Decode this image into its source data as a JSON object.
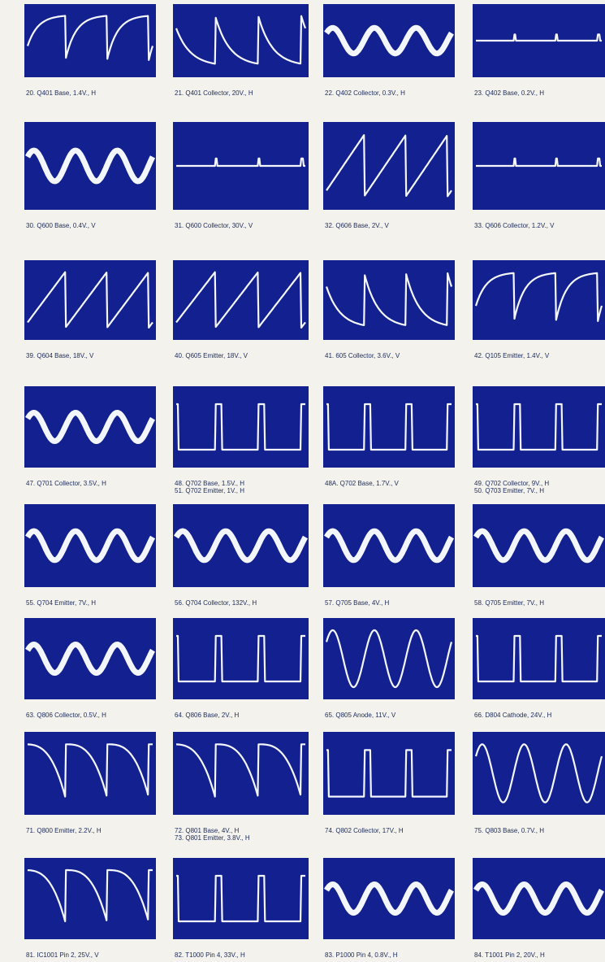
{
  "rows": [
    [
      [
        "20. Q401 Base, 1.4V., H"
      ],
      [
        "21. Q401 Collector, 20V., H"
      ],
      [
        "22. Q402 Collector, 0.3V., H"
      ],
      [
        "23. Q402 Base, 0.2V., H"
      ]
    ],
    [
      [
        "30. Q600 Base, 0.4V., V"
      ],
      [
        "31. Q600 Collector, 30V., V"
      ],
      [
        "32. Q606 Base, 2V., V"
      ],
      [
        "33. Q606 Collector, 1.2V., V"
      ]
    ],
    [
      [
        "39. Q604 Base, 18V., V"
      ],
      [
        "40. Q605 Emitter, 18V., V"
      ],
      [
        "41. 605 Collector, 3.6V., V"
      ],
      [
        "42. Q105 Emitter, 1.4V., V"
      ]
    ],
    [
      [
        "47. Q701 Collector, 3.5V., H"
      ],
      [
        "48. Q702 Base, 1.5V., H",
        "51. Q702 Emitter, 1V., H"
      ],
      [
        "48A. Q702 Base, 1.7V., V"
      ],
      [
        "49. Q702 Collector, 9V., H",
        "50. Q703 Emitter, 7V., H"
      ]
    ],
    [
      [
        "55. Q704 Emitter, 7V., H"
      ],
      [
        "56. Q704 Collector, 132V., H"
      ],
      [
        "57. Q705 Base, 4V., H"
      ],
      [
        "58. Q705 Emitter, 7V., H"
      ]
    ],
    [
      [
        "63. Q806 Collector, 0.5V., H"
      ],
      [
        "64. Q806 Base, 2V., H"
      ],
      [
        "65. Q805 Anode, 11V., V"
      ],
      [
        "66. D804 Cathode, 24V., H"
      ]
    ],
    [
      [
        "71. Q800 Emitter, 2.2V., H"
      ],
      [
        "72. Q801 Base, 4V., H",
        "73. Q801 Emitter, 3.8V., H"
      ],
      [
        "74. Q802 Collector, 17V., H"
      ],
      [
        "75. Q803 Base, 0.7V., H"
      ]
    ],
    [
      [
        "81. IC1001 Pin 2, 25V., V"
      ],
      [
        "82. T1000 Pin 4, 33V., H"
      ],
      [
        "83. P1000 Pin 4, 0.8V., H"
      ],
      [
        "84. T1001 Pin 2, 20V., H"
      ]
    ]
  ]
}
